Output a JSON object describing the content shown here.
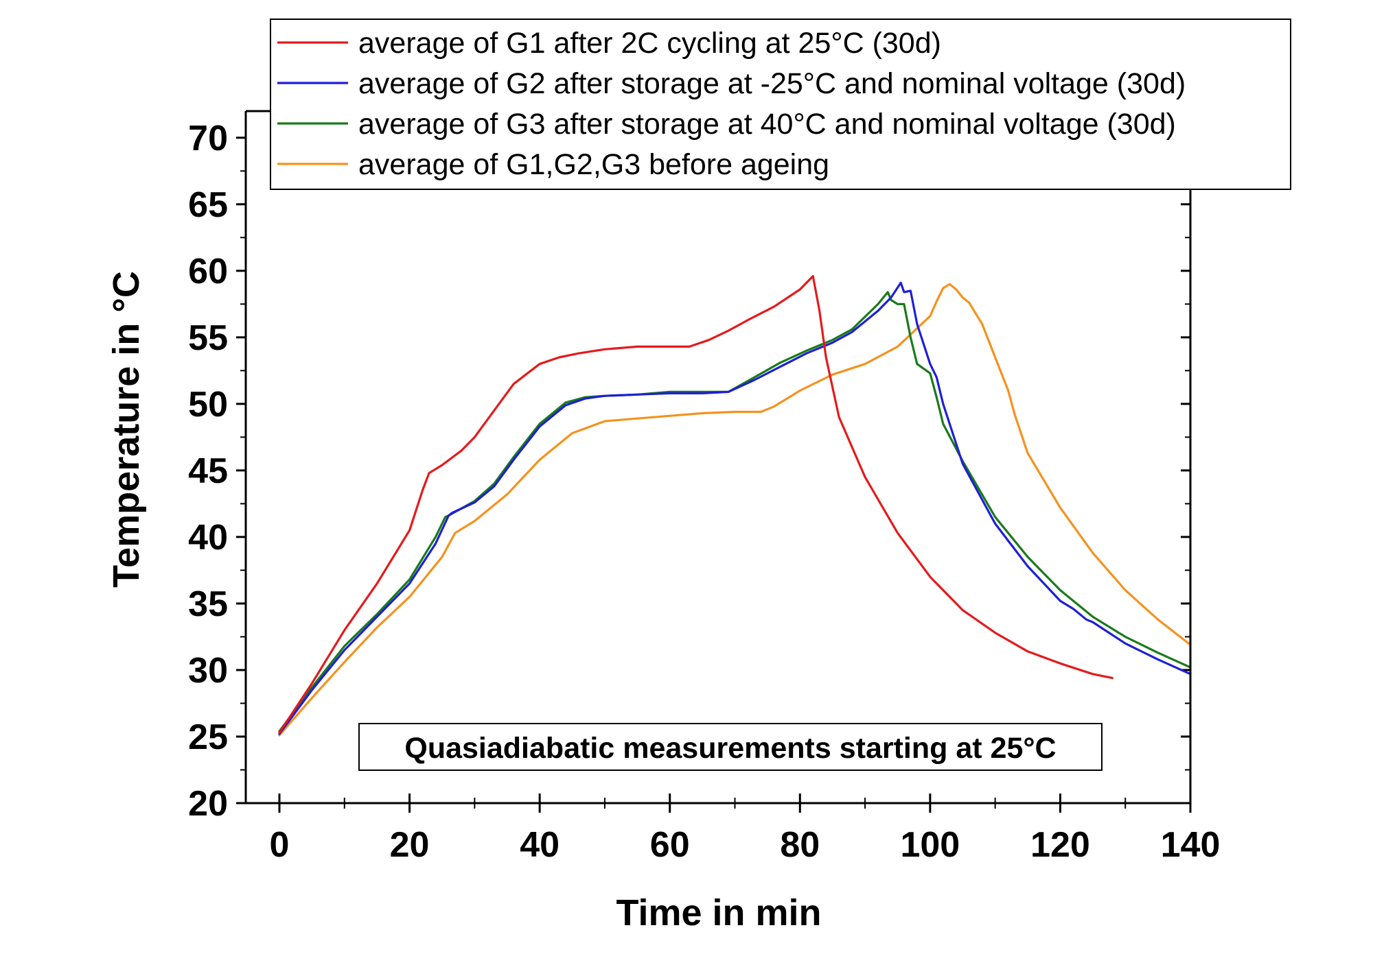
{
  "chart_data": {
    "type": "line",
    "xlabel": "Time in min",
    "ylabel": "Temperature in °C",
    "xlim": [
      -5,
      140
    ],
    "ylim": [
      20,
      72
    ],
    "x_ticks": [
      0,
      20,
      40,
      60,
      80,
      100,
      120,
      140
    ],
    "y_ticks": [
      20,
      25,
      30,
      35,
      40,
      45,
      50,
      55,
      60,
      65,
      70
    ],
    "grid": false,
    "legend_position": "top",
    "annotation": "Quasiadiabatic measurements starting at 25°C",
    "series": [
      {
        "name": "average of G1 after 2C cycling at 25°C (30d)",
        "color": "#e41a1c",
        "x": [
          0,
          5,
          10,
          15,
          20,
          22,
          23,
          25,
          28,
          30,
          33,
          36,
          40,
          43,
          46,
          50,
          55,
          60,
          63,
          66,
          69,
          72,
          76,
          80,
          82,
          83,
          84,
          86,
          90,
          95,
          100,
          105,
          110,
          115,
          120,
          125,
          128
        ],
        "y": [
          25.3,
          29.0,
          33.0,
          36.5,
          40.5,
          43.5,
          44.8,
          45.4,
          46.5,
          47.5,
          49.5,
          51.5,
          53.0,
          53.5,
          53.8,
          54.1,
          54.3,
          54.3,
          54.3,
          54.8,
          55.5,
          56.3,
          57.3,
          58.6,
          59.6,
          57.0,
          53.5,
          49.0,
          44.5,
          40.3,
          37.0,
          34.5,
          32.8,
          31.4,
          30.5,
          29.7,
          29.4
        ]
      },
      {
        "name": "average of G2 after storage at -25°C and nominal voltage (30d)",
        "color": "#1f1fd6",
        "x": [
          0,
          5,
          10,
          15,
          20,
          24,
          26,
          26.5,
          30,
          33,
          36,
          40,
          44,
          47,
          50,
          55,
          60,
          65,
          69,
          73,
          77,
          81,
          85,
          88,
          92,
          94,
          95.5,
          96,
          97,
          98,
          100,
          101,
          102,
          105,
          110,
          115,
          120,
          122,
          124,
          125,
          130,
          135,
          140
        ],
        "y": [
          25.2,
          28.5,
          31.5,
          34.0,
          36.5,
          39.5,
          41.6,
          41.8,
          42.6,
          43.8,
          45.8,
          48.3,
          49.9,
          50.4,
          50.6,
          50.7,
          50.8,
          50.8,
          50.9,
          51.8,
          52.8,
          53.8,
          54.6,
          55.4,
          57.0,
          58.0,
          59.1,
          58.4,
          58.5,
          56.0,
          53.0,
          52.0,
          50.0,
          45.5,
          41.0,
          37.8,
          35.2,
          34.6,
          33.8,
          33.6,
          32.0,
          30.8,
          29.7
        ]
      },
      {
        "name": "average of G3 after storage at 40°C and nominal voltage (30d)",
        "color": "#1a7a1a",
        "x": [
          0,
          5,
          10,
          15,
          20,
          24,
          25.5,
          26,
          30,
          33,
          36,
          40,
          44,
          47,
          50,
          55,
          60,
          65,
          69,
          73,
          77,
          81,
          85,
          88,
          92,
          93.5,
          94,
          95,
          96,
          97,
          98,
          100,
          101,
          102,
          105,
          110,
          115,
          120,
          125,
          130,
          135,
          140
        ],
        "y": [
          25.4,
          28.7,
          31.8,
          34.2,
          36.8,
          40.0,
          41.5,
          41.6,
          42.7,
          44.0,
          46.0,
          48.5,
          50.1,
          50.5,
          50.6,
          50.7,
          50.9,
          50.9,
          50.9,
          52.0,
          53.1,
          54.0,
          54.8,
          55.6,
          57.5,
          58.4,
          57.8,
          57.5,
          57.5,
          55.0,
          53.0,
          52.3,
          50.5,
          48.5,
          45.7,
          41.5,
          38.5,
          36.0,
          34.0,
          32.5,
          31.3,
          30.2
        ]
      },
      {
        "name": "average of G1,G2,G3 before ageing",
        "color": "#f5921e",
        "x": [
          0,
          5,
          10,
          15,
          20,
          25,
          27,
          30,
          35,
          40,
          45,
          50,
          55,
          60,
          65,
          70,
          74,
          76,
          80,
          85,
          90,
          95,
          100,
          101,
          102,
          103,
          104,
          105,
          106,
          108,
          110,
          112,
          113,
          115,
          120,
          125,
          130,
          135,
          140
        ],
        "y": [
          25.1,
          27.9,
          30.6,
          33.2,
          35.5,
          38.5,
          40.3,
          41.2,
          43.2,
          45.8,
          47.8,
          48.7,
          48.9,
          49.1,
          49.3,
          49.4,
          49.4,
          49.8,
          51.0,
          52.2,
          53.0,
          54.3,
          56.6,
          57.7,
          58.7,
          59.0,
          58.6,
          58.0,
          57.6,
          56.0,
          53.5,
          51.0,
          49.2,
          46.3,
          42.2,
          38.8,
          36.0,
          33.8,
          31.9
        ]
      }
    ]
  }
}
